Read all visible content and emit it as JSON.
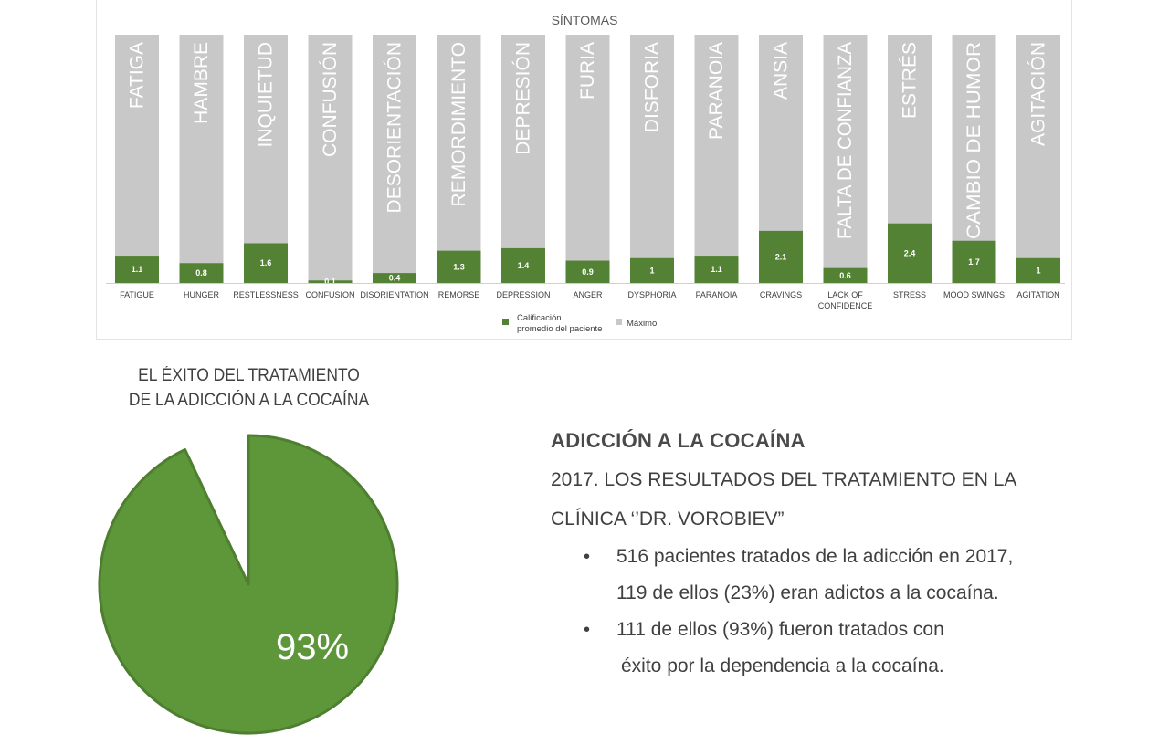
{
  "chart_data": [
    {
      "type": "bar",
      "title": "SÍNTOMAS",
      "categories": [
        "FATIGUE",
        "HUNGER",
        "RESTLESSNESS",
        "CONFUSION",
        "DISORIENTATION",
        "REMORSE",
        "DEPRESSION",
        "ANGER",
        "DYSPHORIA",
        "PARANOIA",
        "CRAVINGS",
        "LACK OF CONFIDENCE",
        "STRESS",
        "MOOD SWINGS",
        "AGITATION"
      ],
      "category_labels_es": [
        "FATIGA",
        "HAMBRE",
        "INQUIETUD",
        "CONFUSIÓN",
        "DESORIENTACIÓN",
        "REMORDIMIENTO",
        "DEPRESIÓN",
        "FURIA",
        "DISFORIA",
        "PARANOIA",
        "ANSIA",
        "FALTA DE CONFIANZA",
        "ESTRÉS",
        "CAMBIO DE HUMOR",
        "AGITACIÓN"
      ],
      "series": [
        {
          "name": "Calificación promedio del paciente",
          "values": [
            1.1,
            0.8,
            1.6,
            0.1,
            0.4,
            1.3,
            1.4,
            0.9,
            1,
            1.1,
            2.1,
            0.6,
            2.4,
            1.7,
            1
          ],
          "color": "#548235"
        },
        {
          "name": "Máximo",
          "values": [
            10,
            10,
            10,
            10,
            10,
            10,
            10,
            10,
            10,
            10,
            10,
            10,
            10,
            10,
            10
          ],
          "color": "#c8c8c8"
        }
      ],
      "ylim": [
        0,
        10
      ],
      "stacked": false,
      "legend": "bottom",
      "grid": false
    },
    {
      "type": "pie",
      "title": "EL ÉXITO DEL TRATAMIENTO DE LA ADICCIÓN A LA COCAÍNA",
      "title_lines": [
        "EL ÉXITO DEL TRATAMIENTO",
        "DE LA ADICCIÓN A LA COCAÍNA"
      ],
      "slices": [
        {
          "value": 93,
          "label": "93%",
          "color": "#5e963a"
        },
        {
          "value": 7,
          "label": "",
          "color": "#ffffff"
        }
      ]
    }
  ],
  "info": {
    "heading": "ADICCIÓN A LA COCAÍNA",
    "line1": "2017. LOS RESULTADOS DEL TRATAMIENTO EN LA",
    "line2": "CLÍNICA ‘’DR. VOROBIEV”",
    "bullets": [
      {
        "line1": "516 pacientes tratados de la adicción en 2017,",
        "line2": "119 de ellos (23%) eran adictos a la cocaína."
      },
      {
        "line1": "111 de ellos (93%) fueron tratados con",
        "line2": "éxito por la dependencia a la cocaína."
      }
    ]
  },
  "colors": {
    "bar_value": "#548235",
    "bar_max": "#c8c8c8",
    "pie_fill": "#5e963a",
    "pie_stroke": "#4e7f30",
    "text": "#404040"
  }
}
